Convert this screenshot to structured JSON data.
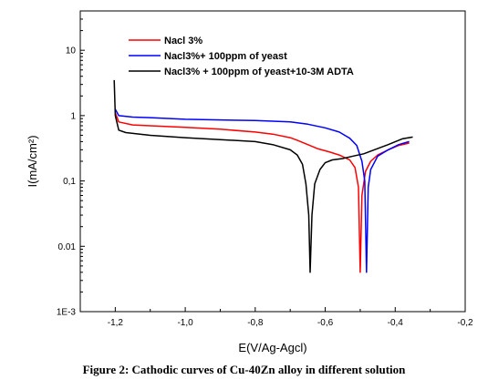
{
  "caption": "Figure 2: Cathodic curves of Cu-40Zn alloy in different solution",
  "chart_data": {
    "type": "line",
    "title": "",
    "xlabel": "E(V/Ag-Agcl)",
    "ylabel": "I(mA/cm²)",
    "xlim": [
      -1.3,
      -0.2
    ],
    "ylim": [
      0.001,
      40
    ],
    "y_scale": "log",
    "x_ticks": [
      -1.2,
      -1.0,
      -0.8,
      -0.6,
      -0.4,
      -0.2
    ],
    "x_tick_labels": [
      "-1,2",
      "-1,0",
      "-0,8",
      "-0,6",
      "-0,4",
      "-0,2"
    ],
    "y_ticks": [
      0.001,
      0.01,
      0.1,
      1,
      10
    ],
    "y_tick_labels": [
      "1E-3",
      "0.01",
      "0,1",
      "1",
      "10"
    ],
    "grid": false,
    "legend_position": "top-left",
    "series": [
      {
        "name": "Nacl 3%",
        "color": "#ff0000",
        "points": [
          [
            -1.2,
            1.1
          ],
          [
            -1.19,
            0.8
          ],
          [
            -1.15,
            0.72
          ],
          [
            -1.1,
            0.7
          ],
          [
            -1.0,
            0.66
          ],
          [
            -0.9,
            0.62
          ],
          [
            -0.8,
            0.56
          ],
          [
            -0.75,
            0.52
          ],
          [
            -0.7,
            0.46
          ],
          [
            -0.68,
            0.42
          ],
          [
            -0.65,
            0.36
          ],
          [
            -0.62,
            0.31
          ],
          [
            -0.59,
            0.28
          ],
          [
            -0.56,
            0.25
          ],
          [
            -0.53,
            0.21
          ],
          [
            -0.515,
            0.16
          ],
          [
            -0.505,
            0.08
          ],
          [
            -0.5,
            0.004
          ],
          [
            -0.495,
            0.06
          ],
          [
            -0.485,
            0.14
          ],
          [
            -0.47,
            0.2
          ],
          [
            -0.45,
            0.25
          ],
          [
            -0.42,
            0.3
          ],
          [
            -0.39,
            0.35
          ],
          [
            -0.36,
            0.38
          ]
        ]
      },
      {
        "name": "Nacl3%+ 100ppm of yeast",
        "color": "#0000ff",
        "points": [
          [
            -1.2,
            1.25
          ],
          [
            -1.19,
            1.0
          ],
          [
            -1.15,
            0.95
          ],
          [
            -1.1,
            0.93
          ],
          [
            -1.0,
            0.88
          ],
          [
            -0.9,
            0.86
          ],
          [
            -0.8,
            0.84
          ],
          [
            -0.7,
            0.8
          ],
          [
            -0.65,
            0.74
          ],
          [
            -0.6,
            0.65
          ],
          [
            -0.56,
            0.56
          ],
          [
            -0.53,
            0.45
          ],
          [
            -0.51,
            0.35
          ],
          [
            -0.495,
            0.2
          ],
          [
            -0.487,
            0.1
          ],
          [
            -0.482,
            0.004
          ],
          [
            -0.477,
            0.08
          ],
          [
            -0.47,
            0.15
          ],
          [
            -0.45,
            0.24
          ],
          [
            -0.42,
            0.3
          ],
          [
            -0.39,
            0.36
          ],
          [
            -0.36,
            0.4
          ]
        ]
      },
      {
        "name": "Nacl3% + 100ppm of yeast+10-3M ADTA",
        "color": "#000000",
        "points": [
          [
            -1.203,
            3.5
          ],
          [
            -1.2,
            1.0
          ],
          [
            -1.19,
            0.6
          ],
          [
            -1.17,
            0.55
          ],
          [
            -1.1,
            0.5
          ],
          [
            -1.0,
            0.46
          ],
          [
            -0.9,
            0.43
          ],
          [
            -0.8,
            0.4
          ],
          [
            -0.75,
            0.36
          ],
          [
            -0.7,
            0.3
          ],
          [
            -0.68,
            0.25
          ],
          [
            -0.665,
            0.18
          ],
          [
            -0.655,
            0.09
          ],
          [
            -0.647,
            0.03
          ],
          [
            -0.643,
            0.004
          ],
          [
            -0.638,
            0.03
          ],
          [
            -0.63,
            0.09
          ],
          [
            -0.615,
            0.15
          ],
          [
            -0.6,
            0.19
          ],
          [
            -0.58,
            0.21
          ],
          [
            -0.55,
            0.22
          ],
          [
            -0.52,
            0.24
          ],
          [
            -0.49,
            0.26
          ],
          [
            -0.46,
            0.3
          ],
          [
            -0.42,
            0.36
          ],
          [
            -0.38,
            0.44
          ],
          [
            -0.35,
            0.47
          ]
        ]
      }
    ]
  }
}
